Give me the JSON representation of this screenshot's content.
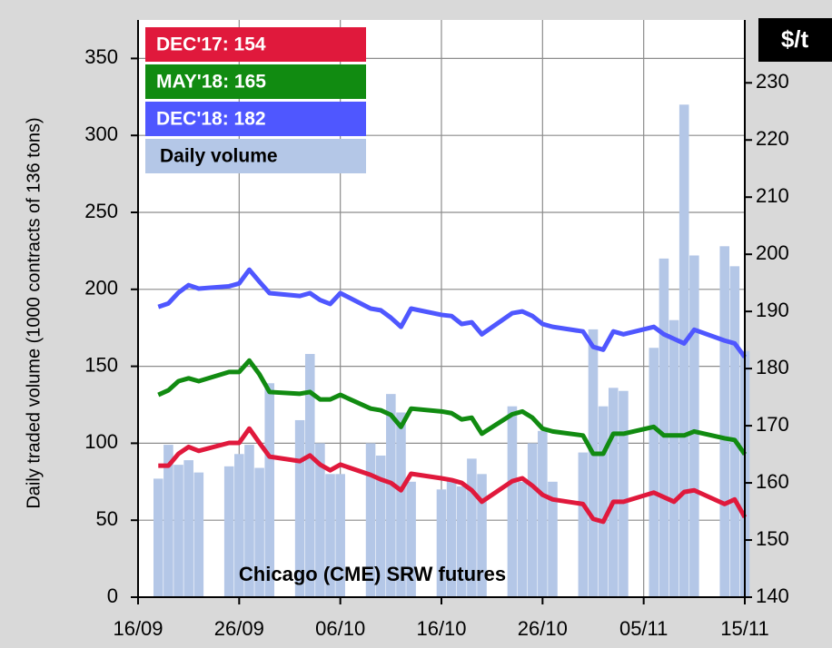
{
  "chart_data": {
    "type": "bar",
    "y_label": "Daily traded volume  (1000 contracts of 136 tons)",
    "y2_label": "$/t",
    "annotation": "Chicago (CME) SRW futures",
    "xlim": [
      "16/09",
      "15/11"
    ],
    "xticks": [
      "16/09",
      "26/09",
      "06/10",
      "16/10",
      "26/10",
      "05/11",
      "15/11"
    ],
    "ylim": [
      0,
      375
    ],
    "yticks": [
      0,
      50,
      100,
      150,
      200,
      250,
      300,
      350
    ],
    "y2lim": [
      140,
      241
    ],
    "y2ticks": [
      140,
      150,
      160,
      170,
      180,
      190,
      200,
      210,
      220,
      230
    ],
    "grid": true,
    "legend": "upper left",
    "x": [
      "18/09",
      "19/09",
      "20/09",
      "21/09",
      "22/09",
      "25/09",
      "26/09",
      "27/09",
      "28/09",
      "29/09",
      "02/10",
      "03/10",
      "04/10",
      "05/10",
      "06/10",
      "09/10",
      "10/10",
      "11/10",
      "12/10",
      "13/10",
      "16/10",
      "17/10",
      "18/10",
      "19/10",
      "20/10",
      "23/10",
      "24/10",
      "25/10",
      "26/10",
      "27/10",
      "30/10",
      "31/10",
      "01/11",
      "02/11",
      "03/11",
      "06/11",
      "07/11",
      "08/11",
      "09/11",
      "10/11",
      "13/11",
      "14/11",
      "15/11"
    ],
    "series": [
      {
        "name": "DEC'17: 154",
        "type": "line",
        "axis": "y2",
        "color": "#e0193c",
        "values": [
          163,
          163,
          165.1,
          166.3,
          165.6,
          167,
          167,
          169.5,
          167,
          164.6,
          163.8,
          164.8,
          163.2,
          162.2,
          163.2,
          161.4,
          160.6,
          160,
          158.7,
          161.6,
          160.8,
          160.5,
          160,
          158.7,
          156.7,
          160.3,
          160.8,
          159.5,
          157.9,
          157.1,
          156.3,
          153.7,
          153.2,
          156.7,
          156.7,
          158.3,
          157.5,
          156.7,
          158.4,
          158.7,
          156.3,
          157.1,
          154
        ]
      },
      {
        "name": "MAY'18:   165",
        "type": "line",
        "axis": "y2",
        "color": "#118b11",
        "values": [
          175.4,
          176.2,
          177.8,
          178.3,
          177.8,
          179.4,
          179.4,
          181.4,
          179,
          175.9,
          175.6,
          175.9,
          174.6,
          174.6,
          175.4,
          173,
          172.7,
          171.9,
          169.8,
          173,
          172.5,
          172.2,
          171.1,
          171.4,
          168.6,
          172,
          172.5,
          171.4,
          169.5,
          169,
          168.3,
          165.1,
          165.1,
          168.6,
          168.6,
          169.8,
          168.3,
          168.3,
          168.3,
          169,
          167.8,
          167.5,
          165
        ]
      },
      {
        "name": "DEC'18: 182",
        "type": "line",
        "axis": "y2",
        "color": "#4f57ff",
        "values": [
          190.8,
          191.4,
          193.3,
          194.6,
          194,
          194.4,
          194.9,
          197.3,
          195.2,
          193.2,
          192.7,
          193.2,
          192,
          191.3,
          193.2,
          190.5,
          190.2,
          188.9,
          187.3,
          190.5,
          189.4,
          189.2,
          187.8,
          188.1,
          186,
          189.7,
          190,
          189.2,
          187.8,
          187.3,
          186.5,
          183.8,
          183.3,
          186.5,
          186,
          187.3,
          186,
          185.2,
          184.4,
          186.8,
          184.9,
          184.4,
          182
        ]
      },
      {
        "name": "Daily volume",
        "type": "bar",
        "color": "#b4c7e7",
        "values": [
          77,
          99,
          86,
          89,
          81,
          85,
          93,
          99,
          84,
          139,
          115,
          158,
          100,
          80,
          80,
          100,
          92,
          132,
          120,
          75,
          70,
          76,
          72,
          90,
          80,
          124,
          75,
          100,
          108,
          75,
          94,
          174,
          124,
          136,
          134,
          162,
          220,
          180,
          320,
          222,
          228,
          215,
          160
        ]
      }
    ]
  }
}
